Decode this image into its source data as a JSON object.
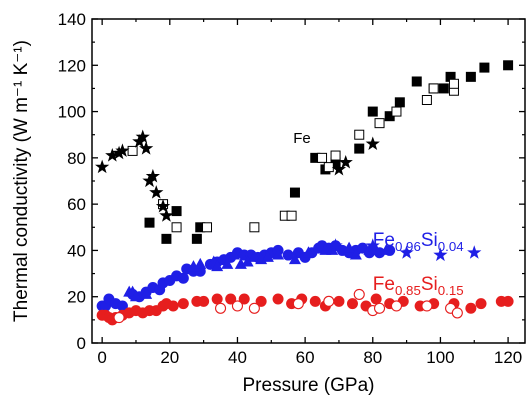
{
  "chart_data": {
    "type": "scatter",
    "xlabel": "Pressure (GPa)",
    "ylabel": "Thermal conductivity (W m⁻¹ K⁻¹)",
    "xlim": [
      -3,
      125
    ],
    "ylim": [
      0,
      140
    ],
    "xticks": [
      0,
      20,
      40,
      60,
      80,
      100,
      120
    ],
    "yticks": [
      0,
      20,
      40,
      60,
      80,
      100,
      120,
      140
    ],
    "grid": false,
    "legend": "none",
    "annotations": [
      {
        "text": "Fe",
        "x": 56.5,
        "y": 86.5,
        "color": "#000000",
        "size": 15,
        "anchor": "start"
      },
      {
        "text": "Fe",
        "sub1": "0.96",
        "mid": "Si",
        "sub2": "0.04",
        "x": 80,
        "y": 42,
        "color": "#1f1fe6",
        "size": 19,
        "anchor": "start"
      },
      {
        "text": "Fe",
        "sub1": "0.85",
        "mid": "Si",
        "sub2": "0.15",
        "x": 80,
        "y": 23,
        "color": "#e61e1e",
        "size": 19,
        "anchor": "start"
      }
    ],
    "series": [
      {
        "color": "#000000",
        "marker": "square-filled",
        "points": [
          [
            14,
            52
          ],
          [
            19,
            45
          ],
          [
            22,
            57
          ],
          [
            28,
            45
          ],
          [
            29,
            50
          ],
          [
            57,
            65
          ],
          [
            63,
            80
          ],
          [
            66,
            75
          ],
          [
            69,
            78
          ],
          [
            76,
            84
          ],
          [
            80,
            100
          ],
          [
            85,
            98
          ],
          [
            88,
            104
          ],
          [
            93,
            113
          ],
          [
            98,
            110
          ],
          [
            101,
            110
          ],
          [
            103,
            115
          ],
          [
            109,
            115
          ],
          [
            113,
            119
          ],
          [
            120,
            120
          ]
        ]
      },
      {
        "color": "#000000",
        "marker": "square-open",
        "points": [
          [
            9,
            83
          ],
          [
            18,
            60
          ],
          [
            22,
            50
          ],
          [
            31,
            50
          ],
          [
            45,
            50
          ],
          [
            54,
            55
          ],
          [
            56,
            55
          ],
          [
            65,
            80
          ],
          [
            67,
            76
          ],
          [
            69,
            81
          ],
          [
            76,
            90
          ],
          [
            82,
            95
          ],
          [
            87,
            100
          ],
          [
            96,
            105
          ],
          [
            98,
            110
          ],
          [
            104,
            109
          ],
          [
            104,
            112
          ]
        ]
      },
      {
        "color": "#000000",
        "marker": "star-filled",
        "points": [
          [
            0,
            76
          ],
          [
            3,
            81
          ],
          [
            5,
            82
          ],
          [
            6,
            83
          ],
          [
            11,
            87
          ],
          [
            12,
            89
          ],
          [
            13,
            84
          ],
          [
            14,
            70
          ],
          [
            15,
            72
          ],
          [
            16,
            65
          ],
          [
            18,
            59
          ],
          [
            19,
            55
          ],
          [
            70,
            75
          ],
          [
            72,
            78
          ],
          [
            80,
            86
          ]
        ]
      },
      {
        "color": "#1f1fe6",
        "marker": "circle-filled",
        "points": [
          [
            0,
            16
          ],
          [
            1,
            16
          ],
          [
            2,
            19
          ],
          [
            4,
            17
          ],
          [
            6,
            16
          ],
          [
            9,
            21
          ],
          [
            11,
            20
          ],
          [
            13,
            22
          ],
          [
            15,
            24
          ],
          [
            17,
            23
          ],
          [
            18,
            26
          ],
          [
            20,
            27
          ],
          [
            22,
            29
          ],
          [
            24,
            28
          ],
          [
            25,
            32
          ],
          [
            27,
            31
          ],
          [
            29,
            31
          ],
          [
            32,
            34
          ],
          [
            34,
            35
          ],
          [
            36,
            36
          ],
          [
            38,
            37
          ],
          [
            40,
            39
          ],
          [
            42,
            38
          ],
          [
            44,
            38
          ],
          [
            46,
            37
          ],
          [
            48,
            38
          ],
          [
            50,
            39
          ],
          [
            52,
            40
          ],
          [
            55,
            38
          ],
          [
            58,
            39
          ],
          [
            60,
            37
          ],
          [
            62,
            39
          ],
          [
            64,
            41
          ],
          [
            65,
            42
          ],
          [
            67,
            41
          ],
          [
            69,
            42
          ],
          [
            71,
            40
          ],
          [
            73,
            39
          ],
          [
            75,
            40
          ],
          [
            77,
            41
          ],
          [
            79,
            39
          ],
          [
            82,
            39
          ],
          [
            85,
            40
          ]
        ]
      },
      {
        "color": "#1f1fe6",
        "marker": "triangle-filled",
        "points": [
          [
            8,
            22
          ],
          [
            9,
            22
          ],
          [
            10,
            20
          ],
          [
            13,
            21
          ],
          [
            27,
            33
          ],
          [
            29,
            34
          ],
          [
            33,
            35
          ],
          [
            34,
            33
          ],
          [
            37,
            34
          ],
          [
            39,
            38
          ],
          [
            41,
            34
          ],
          [
            43,
            35
          ],
          [
            45,
            37
          ],
          [
            47,
            36
          ],
          [
            49,
            37
          ],
          [
            52,
            38
          ],
          [
            57,
            36
          ],
          [
            61,
            39
          ],
          [
            66,
            40
          ],
          [
            68,
            40
          ],
          [
            73,
            41
          ],
          [
            75,
            38
          ],
          [
            79,
            40
          ],
          [
            81,
            40
          ],
          [
            84,
            40
          ]
        ]
      },
      {
        "color": "#1f1fe6",
        "marker": "star-filled",
        "points": [
          [
            69,
            42
          ],
          [
            80,
            42
          ],
          [
            90,
            39
          ],
          [
            100,
            38
          ],
          [
            110,
            39
          ]
        ]
      },
      {
        "color": "#e61e1e",
        "marker": "circle-filled",
        "points": [
          [
            0,
            12
          ],
          [
            1,
            12
          ],
          [
            2,
            11
          ],
          [
            3,
            10
          ],
          [
            4,
            11
          ],
          [
            6,
            12
          ],
          [
            8,
            13
          ],
          [
            10,
            14
          ],
          [
            12,
            13
          ],
          [
            14,
            14
          ],
          [
            16,
            14
          ],
          [
            18,
            16
          ],
          [
            19,
            17
          ],
          [
            21,
            16
          ],
          [
            24,
            17
          ],
          [
            28,
            18
          ],
          [
            30,
            18
          ],
          [
            34,
            19
          ],
          [
            38,
            19
          ],
          [
            42,
            19
          ],
          [
            47,
            18
          ],
          [
            52,
            19
          ],
          [
            56,
            17
          ],
          [
            59,
            19
          ],
          [
            63,
            18
          ],
          [
            66,
            16
          ],
          [
            70,
            18
          ],
          [
            74,
            17
          ],
          [
            78,
            16
          ],
          [
            81,
            19
          ],
          [
            85,
            17
          ],
          [
            89,
            18
          ],
          [
            94,
            16
          ],
          [
            98,
            17
          ],
          [
            104,
            17
          ],
          [
            109,
            15
          ],
          [
            112,
            17
          ],
          [
            118,
            18
          ],
          [
            120,
            18
          ]
        ]
      },
      {
        "color": "#e61e1e",
        "marker": "circle-open",
        "points": [
          [
            5,
            11
          ],
          [
            35,
            15
          ],
          [
            40,
            16
          ],
          [
            45,
            15
          ],
          [
            58,
            17
          ],
          [
            67,
            18
          ],
          [
            76,
            21
          ],
          [
            80,
            14
          ],
          [
            82,
            15
          ],
          [
            87,
            16
          ],
          [
            96,
            16
          ],
          [
            103,
            15
          ],
          [
            105,
            13
          ]
        ]
      }
    ]
  }
}
